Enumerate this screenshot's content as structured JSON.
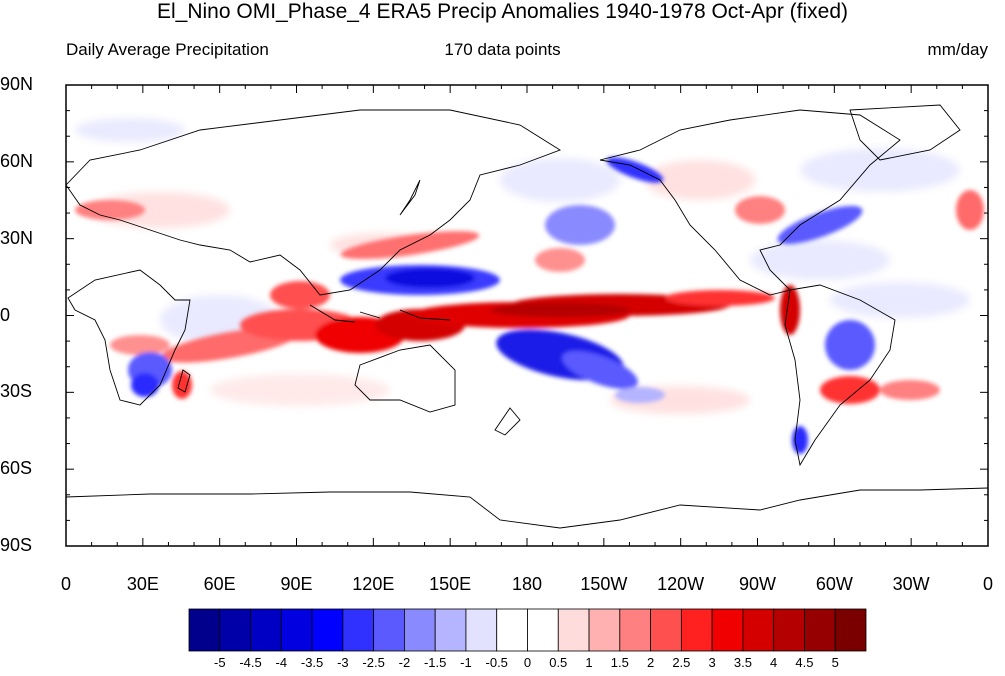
{
  "title": "El_Nino OMI_Phase_4 ERA5 Precip Anomalies 1940-1978 Oct-Apr (fixed)",
  "subtitle_left": "Daily Average Precipitation",
  "subtitle_center": "170 data points",
  "subtitle_right": "mm/day",
  "lat_labels": [
    "90N",
    "60N",
    "30N",
    "0",
    "30S",
    "60S",
    "90S"
  ],
  "lon_labels": [
    "0",
    "30E",
    "60E",
    "90E",
    "120E",
    "150E",
    "180",
    "150W",
    "120W",
    "90W",
    "60W",
    "30W",
    "0"
  ],
  "colorbar": {
    "labels": [
      "-5",
      "-4.5",
      "-4",
      "-3.5",
      "-3",
      "-2.5",
      "-2",
      "-1.5",
      "-1",
      "-0.5",
      "0",
      "0.5",
      "1",
      "1.5",
      "2",
      "2.5",
      "3",
      "3.5",
      "4",
      "4.5",
      "5"
    ],
    "colors": [
      "#00008c",
      "#0000a8",
      "#0000c4",
      "#0000e0",
      "#0000ff",
      "#3030ff",
      "#5a5aff",
      "#8a8aff",
      "#b4b4ff",
      "#e2e2ff",
      "#ffffff",
      "#ffffff",
      "#ffdcdc",
      "#ffb0b0",
      "#ff8080",
      "#ff5050",
      "#ff2020",
      "#f00000",
      "#d40000",
      "#b40000",
      "#960000",
      "#7a0000"
    ]
  }
}
